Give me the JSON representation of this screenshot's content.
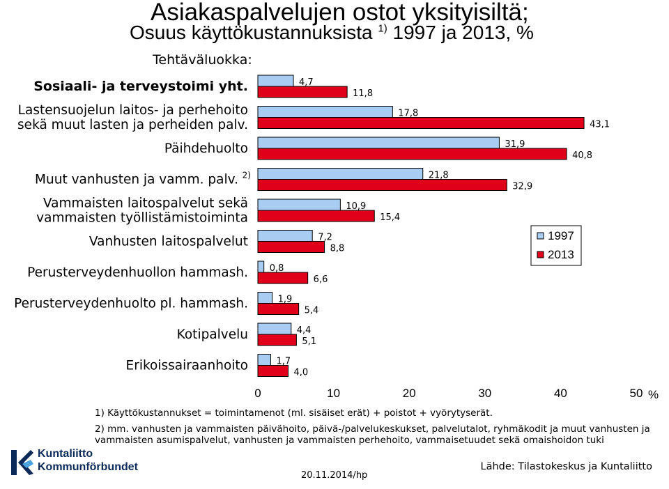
{
  "title": "Asiakaspalvelujen ostot yksityisiltä;",
  "subtitle_main": "Osuus käyttökustannuksista",
  "subtitle_sup": "1)",
  "subtitle_rest": " 1997 ja 2013, %",
  "category_header": "Tehtäväluokka:",
  "colors": {
    "s1997": "#a9cdf2",
    "s2013": "#e0001a"
  },
  "chart_data": {
    "type": "bar",
    "orientation": "horizontal",
    "categories": [
      [
        "Sosiaali- ja terveystoimi yht."
      ],
      [
        "Lastensuojelun laitos- ja perhehoito",
        "sekä muut lasten ja perheiden palv."
      ],
      [
        "Päihdehuolto"
      ],
      [
        "Muut vanhusten ja vamm. palv."
      ],
      [
        "Vammaisten laitospalvelut sekä",
        "vammaisten työllistämistoiminta"
      ],
      [
        "Vanhusten laitospalvelut"
      ],
      [
        "Perusterveydenhuollon hammash."
      ],
      [
        "Perusterveydenhuolto pl. hammash."
      ],
      [
        "Kotipalvelu"
      ],
      [
        "Erikoissairaanhoito"
      ]
    ],
    "category_sups": [
      "",
      "",
      "",
      "2)",
      "",
      "",
      "",
      "",
      "",
      ""
    ],
    "series": [
      {
        "name": "1997",
        "values": [
          4.7,
          17.8,
          31.9,
          21.8,
          10.9,
          7.2,
          0.8,
          1.9,
          4.4,
          1.7
        ],
        "labels": [
          "4,7",
          "17,8",
          "31,9",
          "21,8",
          "10,9",
          "7,2",
          "0,8",
          "1,9",
          "4,4",
          "1,7"
        ]
      },
      {
        "name": "2013",
        "values": [
          11.8,
          43.1,
          40.8,
          32.9,
          15.4,
          8.8,
          6.6,
          5.4,
          5.1,
          4.0
        ],
        "labels": [
          "11,8",
          "43,1",
          "40,8",
          "32,9",
          "15,4",
          "8,8",
          "6,6",
          "5,4",
          "5,1",
          "4,0"
        ]
      }
    ],
    "xlim": [
      0,
      50
    ],
    "xticks": [
      0,
      10,
      20,
      30,
      40,
      50
    ],
    "xlabel": "%",
    "legend_position": "right-middle"
  },
  "footnotes": {
    "fn1": "1) Käyttökustannukset = toimintamenot (ml. sisäiset erät) + poistot + vyörytyserät.",
    "fn2a": "2) mm. vanhusten ja vammaisten päivähoito, päivä-/palvelukeskukset, palvelutalot, ryhmäkodit ja muut vanhusten ja",
    "fn2b": "vammaisten asumispalvelut, vanhusten ja vammaisten perhehoito, vammaisetuudet sekä omaishoidon tuki"
  },
  "logo": {
    "line1": "Kuntaliitto",
    "line2": "Kommunförbundet"
  },
  "date": "20.11.2014/hp",
  "source": "Lähde: Tilastokeskus ja Kuntaliitto"
}
